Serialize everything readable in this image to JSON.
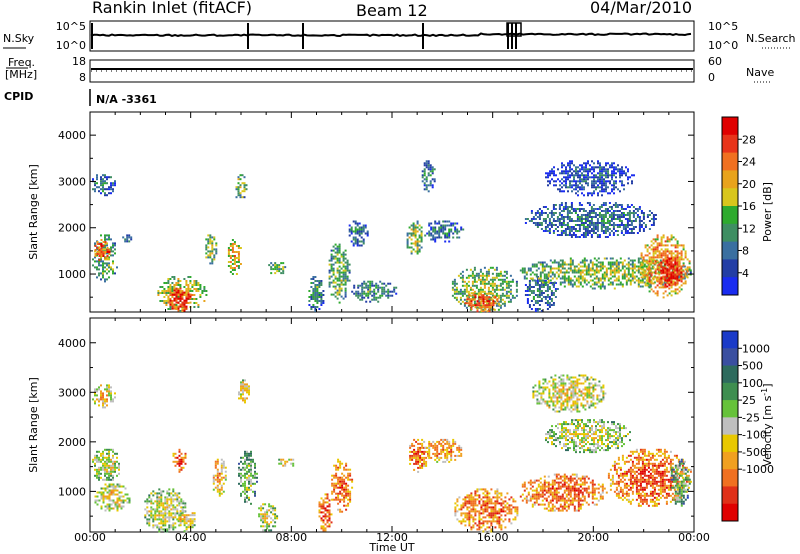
{
  "header": {
    "title": "Rankin Inlet (fitACF)",
    "beam": "Beam 12",
    "date": "04/Mar/2010"
  },
  "noise_panel": {
    "left_label": "N.Sky",
    "right_label": "N.Search",
    "left_ticks": [
      "10^5",
      "10^0"
    ],
    "right_ticks": [
      "10^5",
      "10^0"
    ]
  },
  "freq_panel": {
    "left_label_1": "Freq.",
    "left_label_2": "[MHz]",
    "right_label": "Nave",
    "left_ticks": [
      "18",
      "8"
    ],
    "right_ticks": [
      "60",
      "0"
    ]
  },
  "cpid_panel": {
    "label": "CPID",
    "value": "N/A -3361"
  },
  "chart_data": [
    {
      "type": "heatmap",
      "title": "",
      "xlabel": "Time UT",
      "ylabel": "Slant Range [km]",
      "x_unit": "hours UT",
      "xlim": [
        0,
        24
      ],
      "ylim": [
        180,
        4500
      ],
      "x_ticks": [
        "00:00",
        "04:00",
        "08:00",
        "12:00",
        "16:00",
        "20:00",
        "00:00"
      ],
      "y_ticks": [
        "1000",
        "2000",
        "3000",
        "4000"
      ],
      "colorbar": {
        "label": "Power [dB]",
        "ticks": [
          "4",
          "8",
          "12",
          "16",
          "20",
          "24",
          "28"
        ],
        "colors": [
          "#1a2cf0",
          "#233ea5",
          "#3a6fa0",
          "#3e8e62",
          "#2eaa2e",
          "#d8c61c",
          "#e8a31c",
          "#f07020",
          "#e8341a",
          "#e00000"
        ]
      },
      "regions": [
        {
          "t0": 0.0,
          "t1": 1.1,
          "r0": 850,
          "r1": 1900,
          "level": 0.45
        },
        {
          "t0": 0.1,
          "t1": 0.8,
          "r0": 1300,
          "r1": 1800,
          "level": 0.85
        },
        {
          "t0": 0.0,
          "t1": 1.0,
          "r0": 2700,
          "r1": 3200,
          "level": 0.3
        },
        {
          "t0": 1.2,
          "t1": 1.7,
          "r0": 1700,
          "r1": 1900,
          "level": 0.3
        },
        {
          "t0": 2.6,
          "t1": 4.6,
          "r0": 200,
          "r1": 1000,
          "level": 0.6
        },
        {
          "t0": 3.0,
          "t1": 4.0,
          "r0": 200,
          "r1": 750,
          "level": 0.95
        },
        {
          "t0": 4.5,
          "t1": 5.0,
          "r0": 1200,
          "r1": 1900,
          "level": 0.5
        },
        {
          "t0": 5.4,
          "t1": 6.0,
          "r0": 1000,
          "r1": 1800,
          "level": 0.65
        },
        {
          "t0": 5.7,
          "t1": 6.2,
          "r0": 2600,
          "r1": 3200,
          "level": 0.5
        },
        {
          "t0": 7.0,
          "t1": 7.8,
          "r0": 1000,
          "r1": 1300,
          "level": 0.45
        },
        {
          "t0": 8.6,
          "t1": 9.3,
          "r0": 200,
          "r1": 1000,
          "level": 0.35
        },
        {
          "t0": 9.4,
          "t1": 10.3,
          "r0": 400,
          "r1": 1700,
          "level": 0.45
        },
        {
          "t0": 10.3,
          "t1": 12.2,
          "r0": 400,
          "r1": 900,
          "level": 0.35
        },
        {
          "t0": 10.2,
          "t1": 11.0,
          "r0": 1600,
          "r1": 2200,
          "level": 0.3
        },
        {
          "t0": 12.5,
          "t1": 13.2,
          "r0": 1400,
          "r1": 2200,
          "level": 0.5
        },
        {
          "t0": 13.1,
          "t1": 13.7,
          "r0": 2800,
          "r1": 3500,
          "level": 0.3
        },
        {
          "t0": 14.3,
          "t1": 17.0,
          "r0": 200,
          "r1": 1200,
          "level": 0.5
        },
        {
          "t0": 14.8,
          "t1": 16.3,
          "r0": 200,
          "r1": 650,
          "level": 0.85
        },
        {
          "t0": 13.2,
          "t1": 14.8,
          "r0": 1700,
          "r1": 2200,
          "level": 0.3
        },
        {
          "t0": 17.2,
          "t1": 18.6,
          "r0": 200,
          "r1": 1000,
          "level": 0.3
        },
        {
          "t0": 17.0,
          "t1": 23.9,
          "r0": 700,
          "r1": 1400,
          "level": 0.5
        },
        {
          "t0": 21.8,
          "t1": 23.8,
          "r0": 500,
          "r1": 1900,
          "level": 0.75
        },
        {
          "t0": 22.5,
          "t1": 23.5,
          "r0": 700,
          "r1": 1400,
          "level": 0.95
        },
        {
          "t0": 17.2,
          "t1": 22.6,
          "r0": 1800,
          "r1": 2600,
          "level": 0.3
        },
        {
          "t0": 18.0,
          "t1": 21.6,
          "r0": 2700,
          "r1": 3500,
          "level": 0.2
        }
      ]
    },
    {
      "type": "heatmap",
      "title": "",
      "xlabel": "Time UT",
      "ylabel": "Slant Range [km]",
      "x_unit": "hours UT",
      "xlim": [
        0,
        24
      ],
      "ylim": [
        180,
        4500
      ],
      "x_ticks": [
        "00:00",
        "04:00",
        "08:00",
        "12:00",
        "16:00",
        "20:00",
        "00:00"
      ],
      "y_ticks": [
        "1000",
        "2000",
        "3000",
        "4000"
      ],
      "colorbar": {
        "label": "Velocity [m s^-1]",
        "ticks": [
          "1000",
          "500",
          "100",
          "25",
          "-25",
          "-100",
          "-500",
          "-1000"
        ],
        "colors": [
          "#1a3ac8",
          "#3a4fa0",
          "#2e6b5e",
          "#3e8e50",
          "#66c23a",
          "#bfbfbf",
          "#e8c800",
          "#f0a020",
          "#f07020",
          "#e03018",
          "#e00000"
        ]
      },
      "regions": [
        {
          "t0": 0.0,
          "t1": 1.0,
          "r0": 2700,
          "r1": 3200,
          "level": 0.62
        },
        {
          "t0": 0.0,
          "t1": 1.2,
          "r0": 1200,
          "r1": 1900,
          "level": 0.56
        },
        {
          "t0": 0.1,
          "t1": 1.6,
          "r0": 600,
          "r1": 1200,
          "level": 0.58
        },
        {
          "t0": 2.0,
          "t1": 3.8,
          "r0": 200,
          "r1": 1100,
          "level": 0.55
        },
        {
          "t0": 3.4,
          "t1": 4.2,
          "r0": 200,
          "r1": 700,
          "level": 0.62
        },
        {
          "t0": 3.2,
          "t1": 3.8,
          "r0": 1400,
          "r1": 1900,
          "level": 0.85
        },
        {
          "t0": 4.8,
          "t1": 5.4,
          "r0": 900,
          "r1": 1700,
          "level": 0.7
        },
        {
          "t0": 5.8,
          "t1": 6.6,
          "r0": 700,
          "r1": 1900,
          "level": 0.45
        },
        {
          "t0": 5.8,
          "t1": 6.3,
          "r0": 2800,
          "r1": 3300,
          "level": 0.62
        },
        {
          "t0": 6.6,
          "t1": 7.4,
          "r0": 200,
          "r1": 800,
          "level": 0.55
        },
        {
          "t0": 7.4,
          "t1": 8.2,
          "r0": 1500,
          "r1": 1700,
          "level": 0.62
        },
        {
          "t0": 9.0,
          "t1": 9.6,
          "r0": 200,
          "r1": 1000,
          "level": 0.85
        },
        {
          "t0": 9.5,
          "t1": 10.4,
          "r0": 600,
          "r1": 1700,
          "level": 0.8
        },
        {
          "t0": 12.6,
          "t1": 13.4,
          "r0": 1400,
          "r1": 2100,
          "level": 0.8
        },
        {
          "t0": 13.2,
          "t1": 14.8,
          "r0": 1600,
          "r1": 2100,
          "level": 0.75
        },
        {
          "t0": 14.4,
          "t1": 17.0,
          "r0": 200,
          "r1": 1100,
          "level": 0.8
        },
        {
          "t0": 17.0,
          "t1": 20.5,
          "r0": 600,
          "r1": 1400,
          "level": 0.8
        },
        {
          "t0": 20.5,
          "t1": 23.9,
          "r0": 700,
          "r1": 1900,
          "level": 0.82
        },
        {
          "t0": 18.0,
          "t1": 21.5,
          "r0": 1800,
          "r1": 2500,
          "level": 0.55
        },
        {
          "t0": 17.5,
          "t1": 20.5,
          "r0": 2600,
          "r1": 3400,
          "level": 0.6
        },
        {
          "t0": 23.0,
          "t1": 23.8,
          "r0": 700,
          "r1": 1700,
          "level": 0.4
        }
      ]
    }
  ]
}
